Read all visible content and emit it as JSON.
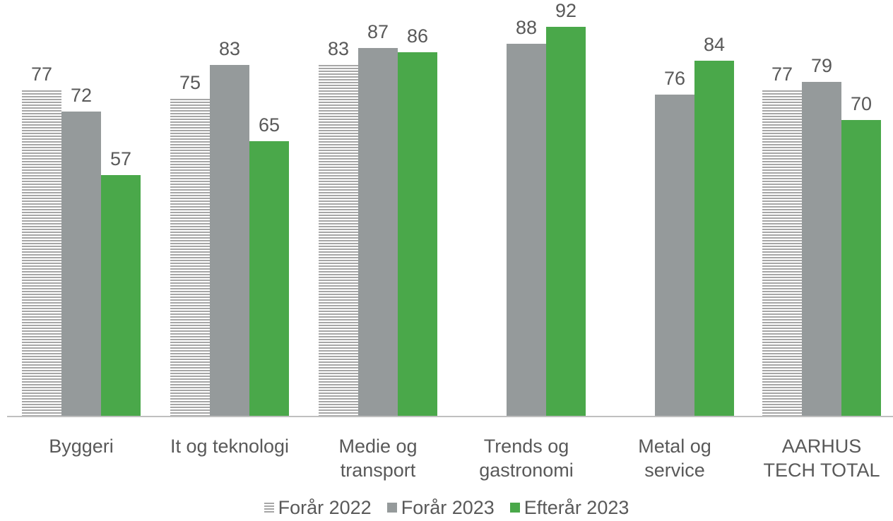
{
  "chart_data": {
    "type": "bar",
    "title": "",
    "xlabel": "",
    "ylabel": "",
    "ylim": [
      0,
      100
    ],
    "grid": false,
    "legend_position": "bottom",
    "categories": [
      [
        "Byggeri"
      ],
      [
        "It og teknologi"
      ],
      [
        "Medie og",
        "transport"
      ],
      [
        "Trends og",
        "gastronomi"
      ],
      [
        "Metal og",
        "service"
      ],
      [
        "AARHUS",
        "TECH TOTAL"
      ]
    ],
    "series": [
      {
        "name": "Forår 2022",
        "color": "#a6a6a6",
        "pattern": "horizontal-stripes",
        "values": [
          77,
          75,
          83,
          null,
          null,
          77
        ]
      },
      {
        "name": "Forår 2023",
        "color": "#959a9b",
        "pattern": "solid",
        "values": [
          72,
          83,
          87,
          88,
          76,
          79
        ]
      },
      {
        "name": "Efterår 2023",
        "color": "#4aa84a",
        "pattern": "solid",
        "values": [
          57,
          65,
          86,
          92,
          84,
          70
        ]
      }
    ]
  }
}
